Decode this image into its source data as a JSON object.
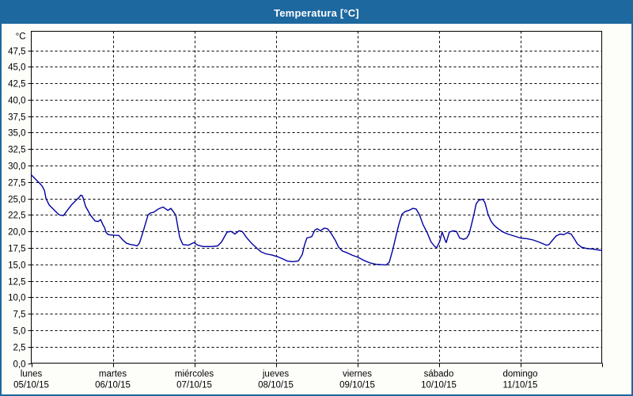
{
  "window": {
    "title": "Temperatura [°C]"
  },
  "colors": {
    "titlebar_bg": "#1d689f",
    "window_border": "#1d689f",
    "title_text": "#ffffff",
    "plot_bg": "#ffffff",
    "grid": "#000000",
    "axis": "#000000",
    "tick_text": "#000000",
    "line": "#0000a0"
  },
  "chart_data": {
    "type": "line",
    "title": "Temperatura [°C]",
    "grid": "dashed",
    "legend_position": "none",
    "y_axis": {
      "unit_label": "°C",
      "min": 0,
      "max_labeled": 47.5,
      "step": 2.5,
      "decimal_separator": ",",
      "tick_values": [
        0,
        2.5,
        5,
        7.5,
        10,
        12.5,
        15,
        17.5,
        20,
        22.5,
        25,
        27.5,
        30,
        32.5,
        35,
        37.5,
        40,
        42.5,
        45,
        47.5
      ],
      "tick_labels": [
        "0,0",
        "2,5",
        "5,0",
        "7,5",
        "10,0",
        "12,5",
        "15,0",
        "17,5",
        "20,0",
        "22,5",
        "25,0",
        "27,5",
        "30,0",
        "32,5",
        "35,0",
        "37,5",
        "40,0",
        "42,5",
        "45,0",
        "47,5"
      ]
    },
    "x_axis": {
      "span_days": 7,
      "days": [
        {
          "name": "lunes",
          "date": "05/10/15"
        },
        {
          "name": "martes",
          "date": "06/10/15"
        },
        {
          "name": "miércoles",
          "date": "07/10/15"
        },
        {
          "name": "jueves",
          "date": "08/10/15"
        },
        {
          "name": "viernes",
          "date": "09/10/15"
        },
        {
          "name": "sábado",
          "date": "10/10/15"
        },
        {
          "name": "domingo",
          "date": "11/10/15"
        }
      ]
    },
    "series": [
      {
        "name": "Temperatura",
        "color": "#0000a0",
        "points_day_temp": [
          [
            0.0,
            28.6
          ],
          [
            0.055,
            27.9
          ],
          [
            0.104,
            27.3
          ],
          [
            0.133,
            26.9
          ],
          [
            0.162,
            26.2
          ],
          [
            0.181,
            25.0
          ],
          [
            0.22,
            24.0
          ],
          [
            0.269,
            23.4
          ],
          [
            0.317,
            22.8
          ],
          [
            0.346,
            22.5
          ],
          [
            0.395,
            22.4
          ],
          [
            0.443,
            23.2
          ],
          [
            0.492,
            24.0
          ],
          [
            0.54,
            24.6
          ],
          [
            0.589,
            25.2
          ],
          [
            0.608,
            25.5
          ],
          [
            0.628,
            25.4
          ],
          [
            0.667,
            23.8
          ],
          [
            0.725,
            22.5
          ],
          [
            0.783,
            21.6
          ],
          [
            0.822,
            21.5
          ],
          [
            0.851,
            21.8
          ],
          [
            0.88,
            21.0
          ],
          [
            0.899,
            20.6
          ],
          [
            0.919,
            19.8
          ],
          [
            0.948,
            19.5
          ],
          [
            1.026,
            19.4
          ],
          [
            1.074,
            19.4
          ],
          [
            1.123,
            18.7
          ],
          [
            1.171,
            18.2
          ],
          [
            1.22,
            18.0
          ],
          [
            1.268,
            17.9
          ],
          [
            1.297,
            17.8
          ],
          [
            1.326,
            18.2
          ],
          [
            1.346,
            18.9
          ],
          [
            1.385,
            20.5
          ],
          [
            1.433,
            22.5
          ],
          [
            1.462,
            22.8
          ],
          [
            1.501,
            22.9
          ],
          [
            1.559,
            23.4
          ],
          [
            1.617,
            23.7
          ],
          [
            1.676,
            23.2
          ],
          [
            1.714,
            23.5
          ],
          [
            1.773,
            22.5
          ],
          [
            1.821,
            19.1
          ],
          [
            1.86,
            18.0
          ],
          [
            1.928,
            17.9
          ],
          [
            1.996,
            18.3
          ],
          [
            2.044,
            17.9
          ],
          [
            2.112,
            17.7
          ],
          [
            2.209,
            17.7
          ],
          [
            2.287,
            17.8
          ],
          [
            2.335,
            18.4
          ],
          [
            2.403,
            19.9
          ],
          [
            2.452,
            20.0
          ],
          [
            2.5,
            19.6
          ],
          [
            2.549,
            20.1
          ],
          [
            2.588,
            20.0
          ],
          [
            2.646,
            19.0
          ],
          [
            2.704,
            18.2
          ],
          [
            2.772,
            17.4
          ],
          [
            2.82,
            16.9
          ],
          [
            2.879,
            16.6
          ],
          [
            2.956,
            16.4
          ],
          [
            3.034,
            16.1
          ],
          [
            3.092,
            15.8
          ],
          [
            3.141,
            15.5
          ],
          [
            3.209,
            15.4
          ],
          [
            3.277,
            15.5
          ],
          [
            3.325,
            16.5
          ],
          [
            3.354,
            18.0
          ],
          [
            3.383,
            19.0
          ],
          [
            3.442,
            19.2
          ],
          [
            3.48,
            20.2
          ],
          [
            3.51,
            20.4
          ],
          [
            3.548,
            20.1
          ],
          [
            3.597,
            20.5
          ],
          [
            3.636,
            20.4
          ],
          [
            3.674,
            19.8
          ],
          [
            3.733,
            18.6
          ],
          [
            3.771,
            17.6
          ],
          [
            3.82,
            17.0
          ],
          [
            3.868,
            16.8
          ],
          [
            3.936,
            16.4
          ],
          [
            4.004,
            16.1
          ],
          [
            4.082,
            15.6
          ],
          [
            4.16,
            15.2
          ],
          [
            4.237,
            15.0
          ],
          [
            4.353,
            14.9
          ],
          [
            4.392,
            15.3
          ],
          [
            4.431,
            17.0
          ],
          [
            4.47,
            19.0
          ],
          [
            4.509,
            21.0
          ],
          [
            4.548,
            22.6
          ],
          [
            4.586,
            23.0
          ],
          [
            4.635,
            23.2
          ],
          [
            4.683,
            23.5
          ],
          [
            4.722,
            23.4
          ],
          [
            4.761,
            22.6
          ],
          [
            4.809,
            21.0
          ],
          [
            4.858,
            19.8
          ],
          [
            4.906,
            18.4
          ],
          [
            4.945,
            17.8
          ],
          [
            4.974,
            17.5
          ],
          [
            5.013,
            18.5
          ],
          [
            5.042,
            19.9
          ],
          [
            5.071,
            18.9
          ],
          [
            5.091,
            18.3
          ],
          [
            5.13,
            19.9
          ],
          [
            5.178,
            20.1
          ],
          [
            5.217,
            20.0
          ],
          [
            5.256,
            19.0
          ],
          [
            5.304,
            18.8
          ],
          [
            5.343,
            19.0
          ],
          [
            5.372,
            19.6
          ],
          [
            5.401,
            21.0
          ],
          [
            5.43,
            22.5
          ],
          [
            5.459,
            24.2
          ],
          [
            5.488,
            24.7
          ],
          [
            5.537,
            24.9
          ],
          [
            5.566,
            24.4
          ],
          [
            5.605,
            22.6
          ],
          [
            5.644,
            21.5
          ],
          [
            5.682,
            20.9
          ],
          [
            5.731,
            20.4
          ],
          [
            5.789,
            19.9
          ],
          [
            5.847,
            19.6
          ],
          [
            5.925,
            19.3
          ],
          [
            6.003,
            19.0
          ],
          [
            6.08,
            18.9
          ],
          [
            6.158,
            18.7
          ],
          [
            6.226,
            18.4
          ],
          [
            6.284,
            18.1
          ],
          [
            6.323,
            17.9
          ],
          [
            6.352,
            18.0
          ],
          [
            6.391,
            18.6
          ],
          [
            6.439,
            19.3
          ],
          [
            6.488,
            19.6
          ],
          [
            6.536,
            19.5
          ],
          [
            6.575,
            19.8
          ],
          [
            6.624,
            19.6
          ],
          [
            6.662,
            18.9
          ],
          [
            6.701,
            18.1
          ],
          [
            6.75,
            17.6
          ],
          [
            6.818,
            17.4
          ],
          [
            6.895,
            17.3
          ],
          [
            6.954,
            17.2
          ],
          [
            7.0,
            17.1
          ]
        ]
      }
    ]
  }
}
